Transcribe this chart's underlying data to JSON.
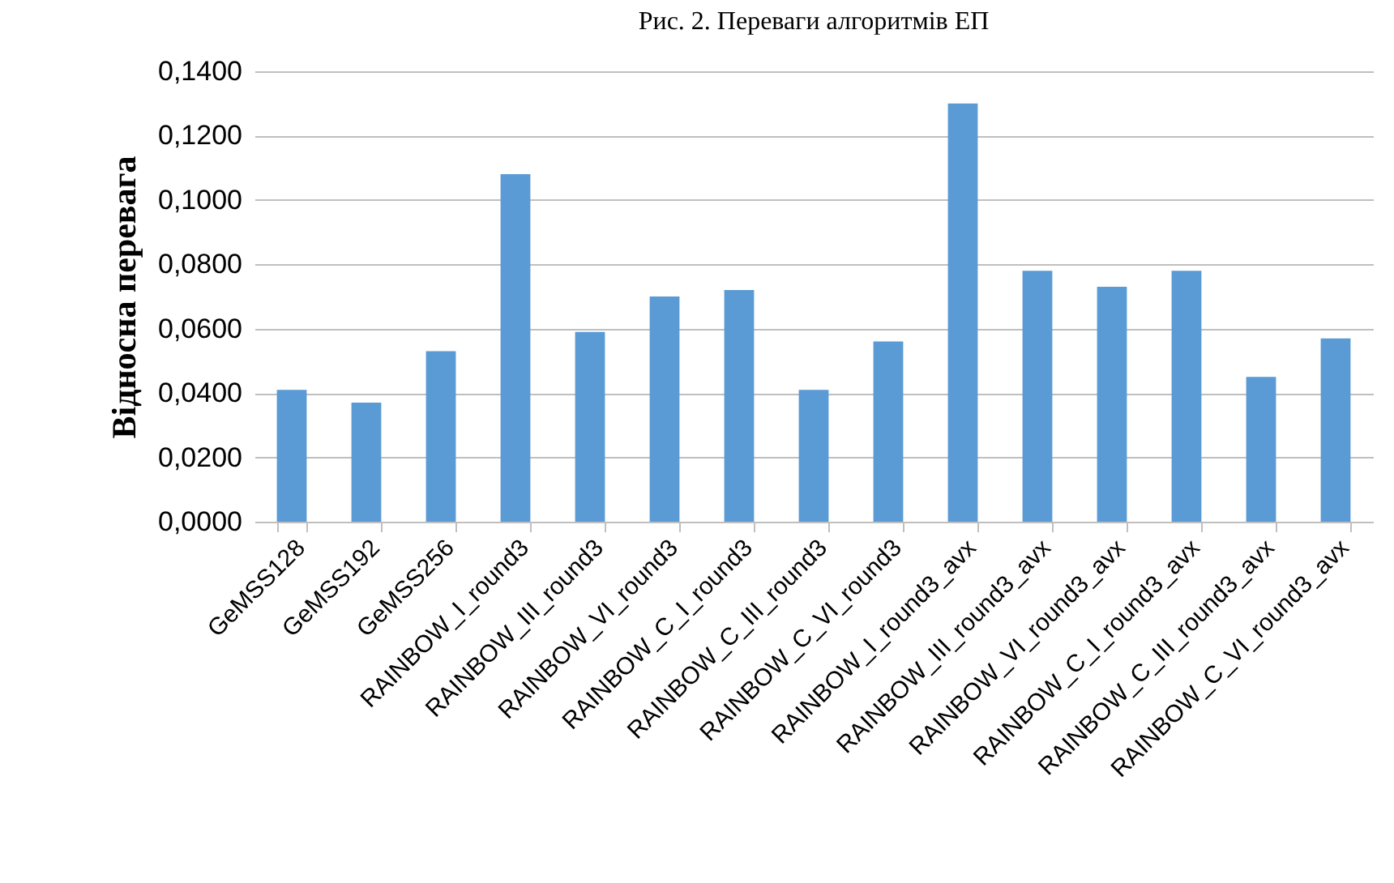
{
  "chart_data": {
    "type": "bar",
    "title": "Рис. 2. Переваги алгоритмів ЕП",
    "ylabel": "Відносна перевага",
    "categories": [
      "GeMSS128",
      "GeMSS192",
      "GeMSS256",
      "RAINBOW_I_round3",
      "RAINBOW_III_round3",
      "RAINBOW_VI_round3",
      "RAINBOW_C_I_round3",
      "RAINBOW_C_III_round3",
      "RAINBOW_C_VI_round3",
      "RAINBOW_I_round3_avx",
      "RAINBOW_III_round3_avx",
      "RAINBOW_VI_round3_avx",
      "RAINBOW_C_I_round3_avx",
      "RAINBOW_C_III_round3_avx",
      "RAINBOW_C_VI_round3_avx"
    ],
    "values": [
      0.041,
      0.037,
      0.053,
      0.108,
      0.059,
      0.07,
      0.072,
      0.041,
      0.056,
      0.13,
      0.078,
      0.073,
      0.078,
      0.045,
      0.057
    ],
    "color": "#5b9bd5",
    "ylim": [
      0,
      0.14
    ],
    "yticks": [
      {
        "value": 0,
        "label": "0,0000"
      },
      {
        "value": 0.02,
        "label": "0,0200"
      },
      {
        "value": 0.04,
        "label": "0,0400"
      },
      {
        "value": 0.06,
        "label": "0,0600"
      },
      {
        "value": 0.08,
        "label": "0,0800"
      },
      {
        "value": 0.1,
        "label": "0,1000"
      },
      {
        "value": 0.12,
        "label": "0,1200"
      },
      {
        "value": 0.14,
        "label": "0,1400"
      }
    ],
    "grid": "y"
  }
}
